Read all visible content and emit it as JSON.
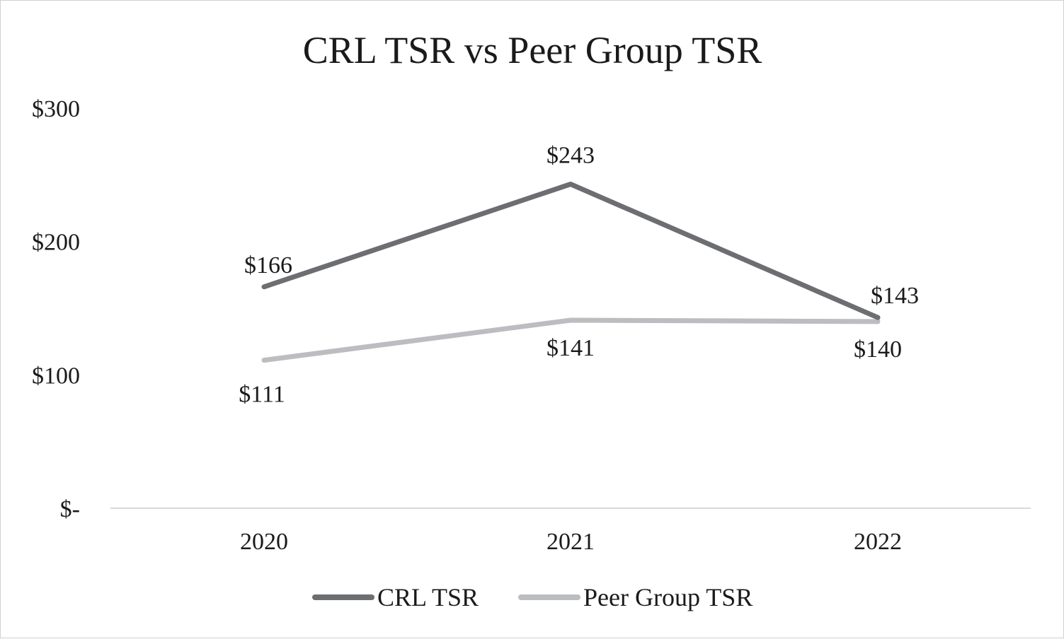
{
  "chart_data": {
    "type": "line",
    "title": "CRL TSR vs Peer Group TSR",
    "xlabel": "",
    "ylabel": "",
    "categories": [
      "2020",
      "2021",
      "2022"
    ],
    "ylim": [
      0,
      300
    ],
    "yticks": [
      0,
      100,
      200,
      300
    ],
    "ytick_labels": [
      "$-",
      "$100",
      "$200",
      "$300"
    ],
    "grid": false,
    "legend_position": "bottom",
    "series": [
      {
        "name": "CRL TSR",
        "color": "#6d6e71",
        "values": [
          166,
          243,
          143
        ],
        "labels": [
          "$166",
          "$243",
          "$143"
        ],
        "label_positions": [
          "above",
          "above",
          "above-right"
        ]
      },
      {
        "name": "Peer Group TSR",
        "color": "#bcbdc0",
        "values": [
          111,
          141,
          140
        ],
        "labels": [
          "$111",
          "$141",
          "$140"
        ],
        "label_positions": [
          "below",
          "below",
          "below"
        ]
      }
    ],
    "axis_color": "#d9d9d9"
  }
}
